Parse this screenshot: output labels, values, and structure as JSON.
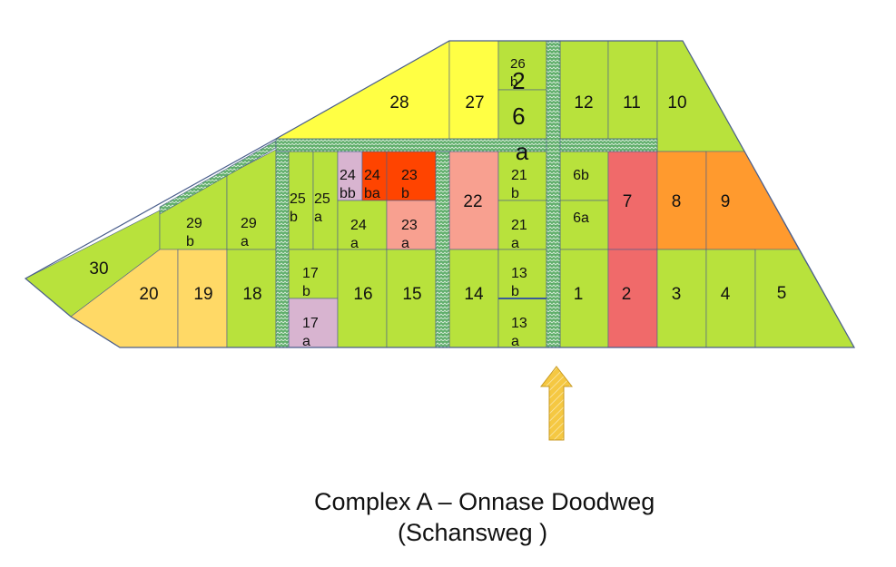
{
  "map": {
    "colors": {
      "lime": "#b8e23c",
      "yellow": "#ffff44",
      "light_orange": "#ffd966",
      "salmon": "#f8a090",
      "light_red": "#f06a6a",
      "red_orange": "#ff4400",
      "orange": "#ff9a2e",
      "pink": "#d8b4d0",
      "path_green": "#5fae6a",
      "arrow": "#f5c842",
      "outline": "#4a5e8c"
    },
    "parcels": {
      "p30": "30",
      "p29b": [
        "29",
        "b"
      ],
      "p29a": [
        "29",
        "a"
      ],
      "p28": "28",
      "p27": "27",
      "p26b": [
        "26",
        "b"
      ],
      "p26a": [
        "2",
        "6",
        "a"
      ],
      "p25b": [
        "25",
        "b"
      ],
      "p25a": [
        "25",
        "a"
      ],
      "p24bb": [
        "24",
        "bb"
      ],
      "p24ba": [
        "24",
        "ba"
      ],
      "p23b": [
        "23",
        "b"
      ],
      "p24a": [
        "24",
        "a"
      ],
      "p23a": [
        "23",
        "a"
      ],
      "p22": "22",
      "p21b": [
        "21",
        "b"
      ],
      "p21a": [
        "21",
        "a"
      ],
      "p12": "12",
      "p11": "11",
      "p10": "10",
      "p6b": "6b",
      "p6a": "6a",
      "p7": "7",
      "p8": "8",
      "p9": "9",
      "p20": "20",
      "p19": "19",
      "p18": "18",
      "p17b": [
        "17",
        "b"
      ],
      "p17a": [
        "17",
        "a"
      ],
      "p16": "16",
      "p15": "15",
      "p14": "14",
      "p13b": [
        "13",
        "b"
      ],
      "p13a": [
        "13",
        "a"
      ],
      "p1": "1",
      "p2": "2",
      "p3": "3",
      "p4": "4",
      "p5": "5"
    }
  },
  "caption": {
    "line1": "Complex A – Onnase Doodweg",
    "line2": "(Schansweg )"
  }
}
